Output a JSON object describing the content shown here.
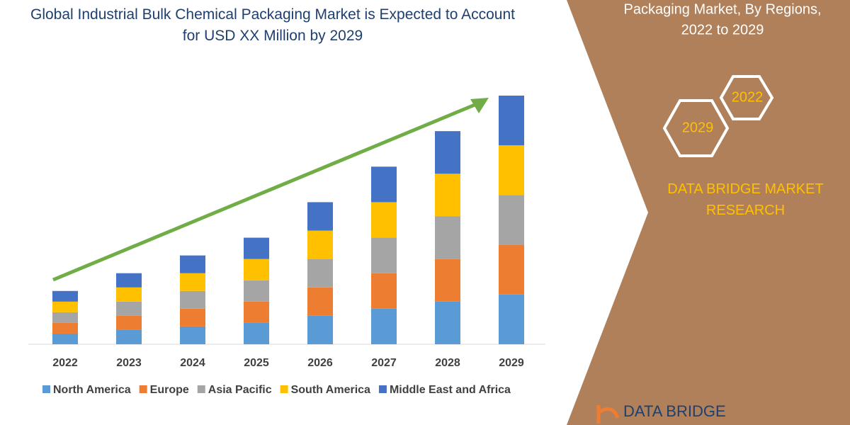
{
  "chart_data": {
    "type": "stacked_bar",
    "title": "Global Industrial Bulk Chemical Packaging Market is Expected to Account for USD XX Million by 2029",
    "categories": [
      "2022",
      "2023",
      "2024",
      "2025",
      "2026",
      "2027",
      "2028",
      "2029"
    ],
    "series": [
      {
        "name": "North America",
        "color": "#5b9bd5",
        "values": [
          15,
          20,
          25,
          30,
          40,
          50,
          60,
          70
        ]
      },
      {
        "name": "Europe",
        "color": "#ed7d31",
        "values": [
          15,
          20,
          25,
          30,
          40,
          50,
          60,
          70
        ]
      },
      {
        "name": "Asia Pacific",
        "color": "#a5a5a5",
        "values": [
          15,
          20,
          25,
          30,
          40,
          50,
          60,
          70
        ]
      },
      {
        "name": "South America",
        "color": "#ffc000",
        "values": [
          15,
          20,
          25,
          30,
          40,
          50,
          60,
          70
        ]
      },
      {
        "name": "Middle East and Africa",
        "color": "#4472c4",
        "values": [
          15,
          20,
          25,
          30,
          40,
          50,
          60,
          70
        ]
      }
    ]
  },
  "panel": {
    "heading": [
      "Packaging Market, By Regions,",
      "2022 to 2029"
    ],
    "hexagons": [
      "2022",
      "2029"
    ],
    "brand": "DATA BRIDGE MARKET RESEARCH",
    "logo": "DATA BRIDGE"
  }
}
